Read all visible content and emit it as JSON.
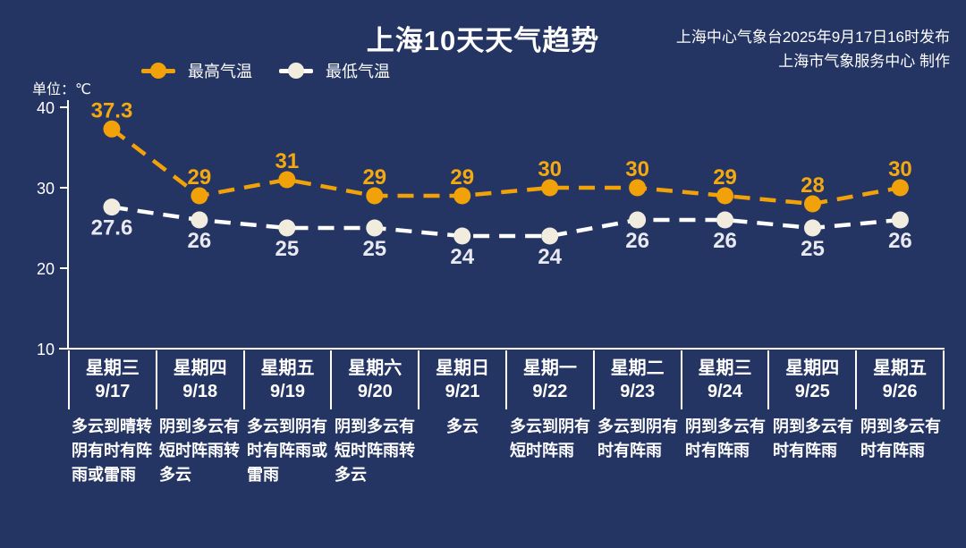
{
  "header": {
    "title": "上海10天天气趋势",
    "publisher_line1": "上海中心气象台2025年9月17日16时发布",
    "publisher_line2": "上海市气象服务中心 制作"
  },
  "unit_label": "单位：℃",
  "colors": {
    "background": "#243463",
    "axis": "#ffffff",
    "high_series": "#F2A209",
    "high_label": "#F4A911",
    "low_line": "#FFFFFF",
    "low_marker": "#F2ECDF",
    "low_label": "#E9E9F1",
    "text": "#FFFFFF"
  },
  "chart_data": {
    "type": "line",
    "title": "上海10天天气趋势",
    "ylabel": "单位：℃",
    "ylim": [
      10,
      40
    ],
    "yticks": [
      40,
      30,
      20,
      10
    ],
    "grid": false,
    "legend_position": "top-left",
    "categories": [
      {
        "weekday": "星期三",
        "date": "9/17",
        "weather": "多云到晴转阴有时有阵雨或雷雨",
        "weather_lines": [
          "多云到晴转",
          "阴有时有阵",
          "雨或雷雨"
        ]
      },
      {
        "weekday": "星期四",
        "date": "9/18",
        "weather": "阴到多云有短时阵雨转多云",
        "weather_lines": [
          "阴到多云有",
          "短时阵雨转",
          "多云"
        ]
      },
      {
        "weekday": "星期五",
        "date": "9/19",
        "weather": "多云到阴有时有阵雨或雷雨",
        "weather_lines": [
          "多云到阴有",
          "时有阵雨或",
          "雷雨"
        ]
      },
      {
        "weekday": "星期六",
        "date": "9/20",
        "weather": "阴到多云有短时阵雨转多云",
        "weather_lines": [
          "阴到多云有",
          "短时阵雨转",
          "多云"
        ]
      },
      {
        "weekday": "星期日",
        "date": "9/21",
        "weather": "多云",
        "weather_lines": [
          "多云"
        ]
      },
      {
        "weekday": "星期一",
        "date": "9/22",
        "weather": "多云到阴有短时阵雨",
        "weather_lines": [
          "多云到阴有",
          "短时阵雨"
        ]
      },
      {
        "weekday": "星期二",
        "date": "9/23",
        "weather": "多云到阴有时有阵雨",
        "weather_lines": [
          "多云到阴有",
          "时有阵雨"
        ]
      },
      {
        "weekday": "星期三",
        "date": "9/24",
        "weather": "阴到多云有时有阵雨",
        "weather_lines": [
          "阴到多云有",
          "时有阵雨"
        ]
      },
      {
        "weekday": "星期四",
        "date": "9/25",
        "weather": "阴到多云有时有阵雨",
        "weather_lines": [
          "阴到多云有",
          "时有阵雨"
        ]
      },
      {
        "weekday": "星期五",
        "date": "9/26",
        "weather": "阴到多云有时有阵雨",
        "weather_lines": [
          "阴到多云有",
          "时有阵雨"
        ]
      }
    ],
    "series": [
      {
        "key": "high",
        "name": "最高气温",
        "values": [
          37.3,
          29,
          31,
          29,
          29,
          30,
          30,
          29,
          28,
          30
        ],
        "color": "#F2A209",
        "marker_color": "#F2A209",
        "label_color": "#F4A911",
        "label_position": "above"
      },
      {
        "key": "low",
        "name": "最低气温",
        "values": [
          27.6,
          26,
          25,
          25,
          24,
          24,
          26,
          26,
          25,
          26
        ],
        "color": "#FFFFFF",
        "marker_color": "#F2ECDF",
        "label_color": "#E9E9F1",
        "label_position": "below"
      }
    ]
  }
}
